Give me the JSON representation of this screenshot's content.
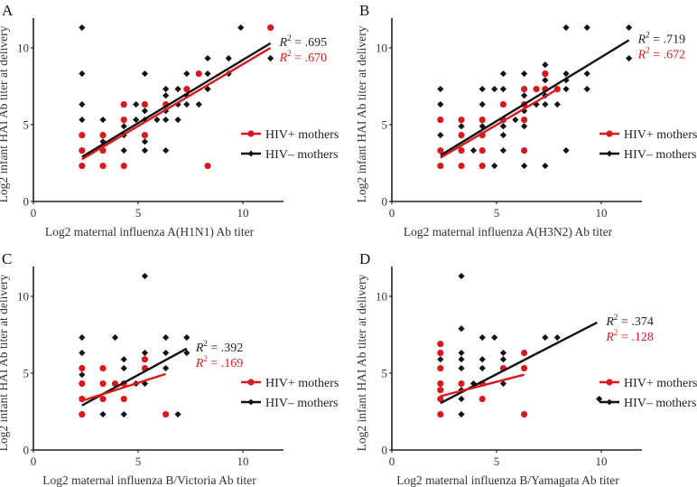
{
  "colors": {
    "hiv_pos": "#d7191c",
    "hiv_neg": "#111111",
    "axis": "#222222"
  },
  "chart_data": [
    {
      "type": "scatter",
      "panel": "A",
      "xlabel": "Log2 maternal influenza A(H1N1) Ab titer",
      "ylabel": "Log2 infant HAI Ab titer at delivery",
      "xlim": [
        0,
        12
      ],
      "ylim": [
        0,
        12
      ],
      "xticks": [
        "0",
        "5",
        "10"
      ],
      "yticks": [
        "0",
        "5",
        "10"
      ],
      "legend": [
        "HIV+ mothers",
        "HIV– mothers"
      ],
      "legend_position": "right",
      "series": [
        {
          "name": "HIV+ mothers",
          "r2_label": "R² = .670",
          "fit": {
            "x": [
              2.32,
              11.32
            ],
            "y": [
              2.75,
              10.0
            ]
          },
          "points": [
            [
              2.32,
              2.32
            ],
            [
              2.32,
              3.32
            ],
            [
              2.32,
              4.32
            ],
            [
              3.32,
              2.32
            ],
            [
              3.32,
              3.32
            ],
            [
              3.32,
              4.32
            ],
            [
              4.32,
              2.32
            ],
            [
              4.32,
              5.32
            ],
            [
              4.32,
              6.32
            ],
            [
              5.32,
              4.32
            ],
            [
              5.32,
              6.32
            ],
            [
              6.32,
              6.32
            ],
            [
              7.32,
              7.32
            ],
            [
              7.9,
              8.32
            ],
            [
              8.32,
              2.32
            ],
            [
              11.32,
              11.32
            ]
          ]
        },
        {
          "name": "HIV– mothers",
          "r2_label": "R² = .695",
          "fit": {
            "x": [
              2.32,
              11.32
            ],
            "y": [
              2.9,
              10.3
            ]
          },
          "points": [
            [
              2.32,
              11.32
            ],
            [
              2.32,
              8.32
            ],
            [
              2.32,
              6.32
            ],
            [
              2.32,
              5.32
            ],
            [
              3.32,
              5.32
            ],
            [
              3.32,
              3.9
            ],
            [
              4.32,
              3.32
            ],
            [
              4.32,
              4.32
            ],
            [
              4.32,
              4.9
            ],
            [
              4.9,
              6.32
            ],
            [
              4.9,
              5.32
            ],
            [
              5.32,
              8.32
            ],
            [
              5.32,
              5.9
            ],
            [
              5.32,
              5.32
            ],
            [
              5.32,
              3.9
            ],
            [
              5.32,
              3.32
            ],
            [
              5.9,
              5.32
            ],
            [
              6.32,
              7.32
            ],
            [
              6.32,
              6.9
            ],
            [
              6.32,
              5.9
            ],
            [
              6.32,
              5.32
            ],
            [
              6.32,
              3.32
            ],
            [
              6.9,
              7.32
            ],
            [
              6.9,
              6.32
            ],
            [
              6.9,
              5.32
            ],
            [
              7.32,
              8.32
            ],
            [
              7.32,
              6.9
            ],
            [
              7.32,
              6.32
            ],
            [
              7.9,
              6.32
            ],
            [
              8.32,
              9.32
            ],
            [
              8.32,
              8.32
            ],
            [
              8.32,
              7.32
            ],
            [
              9.32,
              9.32
            ],
            [
              9.32,
              8.32
            ],
            [
              9.9,
              11.32
            ],
            [
              11.32,
              9.32
            ]
          ]
        }
      ]
    },
    {
      "type": "scatter",
      "panel": "B",
      "xlabel": "Log2 maternal influenza A(H3N2) Ab titer",
      "ylabel": "Log2 infant HAI Ab titer at delivery",
      "xlim": [
        0,
        12
      ],
      "ylim": [
        0,
        12
      ],
      "xticks": [
        "0",
        "5",
        "10"
      ],
      "yticks": [
        "0",
        "5",
        "10"
      ],
      "legend": [
        "HIV+ mothers",
        "HIV– mothers"
      ],
      "legend_position": "right",
      "series": [
        {
          "name": "HIV+ mothers",
          "r2_label": "R² = .672",
          "fit": {
            "x": [
              2.32,
              7.9
            ],
            "y": [
              2.85,
              7.3
            ]
          },
          "points": [
            [
              2.32,
              2.32
            ],
            [
              2.32,
              3.32
            ],
            [
              2.32,
              5.32
            ],
            [
              3.32,
              2.32
            ],
            [
              3.32,
              3.32
            ],
            [
              3.32,
              4.32
            ],
            [
              3.32,
              5.32
            ],
            [
              4.32,
              2.32
            ],
            [
              4.32,
              3.32
            ],
            [
              4.32,
              4.32
            ],
            [
              4.32,
              5.32
            ],
            [
              5.32,
              5.32
            ],
            [
              5.32,
              6.32
            ],
            [
              6.32,
              3.32
            ],
            [
              6.32,
              5.32
            ],
            [
              6.32,
              6.32
            ],
            [
              6.32,
              7.32
            ],
            [
              6.9,
              7.32
            ],
            [
              7.32,
              7.32
            ],
            [
              7.32,
              8.32
            ],
            [
              7.9,
              7.32
            ]
          ]
        },
        {
          "name": "HIV– mothers",
          "r2_label": "R² = .719",
          "fit": {
            "x": [
              2.32,
              11.32
            ],
            "y": [
              3.0,
              10.5
            ]
          },
          "points": [
            [
              2.32,
              7.32
            ],
            [
              2.32,
              6.32
            ],
            [
              2.32,
              4.32
            ],
            [
              3.32,
              4.9
            ],
            [
              3.9,
              3.32
            ],
            [
              4.32,
              7.32
            ],
            [
              4.32,
              6.32
            ],
            [
              4.32,
              4.9
            ],
            [
              4.9,
              2.32
            ],
            [
              4.9,
              7.32
            ],
            [
              5.32,
              8.32
            ],
            [
              5.32,
              7.32
            ],
            [
              5.32,
              4.9
            ],
            [
              5.32,
              4.32
            ],
            [
              5.32,
              3.32
            ],
            [
              5.9,
              5.32
            ],
            [
              6.32,
              8.32
            ],
            [
              6.32,
              6.9
            ],
            [
              6.32,
              5.9
            ],
            [
              6.32,
              4.9
            ],
            [
              6.32,
              2.32
            ],
            [
              6.9,
              6.32
            ],
            [
              7.32,
              8.9
            ],
            [
              7.32,
              7.9
            ],
            [
              7.32,
              6.9
            ],
            [
              7.32,
              6.32
            ],
            [
              7.32,
              2.32
            ],
            [
              7.9,
              7.32
            ],
            [
              7.9,
              6.32
            ],
            [
              8.32,
              8.32
            ],
            [
              8.32,
              7.9
            ],
            [
              8.32,
              7.32
            ],
            [
              8.32,
              3.32
            ],
            [
              9.32,
              7.32
            ],
            [
              9.32,
              8.32
            ],
            [
              9.32,
              11.32
            ],
            [
              8.32,
              11.32
            ],
            [
              11.32,
              11.32
            ],
            [
              11.32,
              9.32
            ]
          ]
        }
      ]
    },
    {
      "type": "scatter",
      "panel": "C",
      "xlabel": "Log2 maternal influenza B/Victoria Ab titer",
      "ylabel": "Log2 infant HAI Ab titer at delivery",
      "xlim": [
        0,
        12
      ],
      "ylim": [
        0,
        12
      ],
      "xticks": [
        "0",
        "5",
        "10"
      ],
      "yticks": [
        "0",
        "5",
        "10"
      ],
      "legend": [
        "HIV+ mothers",
        "HIV– mothers"
      ],
      "legend_position": "right",
      "series": [
        {
          "name": "HIV+ mothers",
          "r2_label": "R² = .169",
          "fit": {
            "x": [
              2.32,
              6.32
            ],
            "y": [
              3.2,
              4.95
            ]
          },
          "points": [
            [
              2.32,
              2.32
            ],
            [
              2.32,
              3.32
            ],
            [
              2.32,
              4.32
            ],
            [
              2.32,
              5.32
            ],
            [
              3.32,
              3.32
            ],
            [
              3.32,
              4.32
            ],
            [
              3.32,
              5.32
            ],
            [
              3.9,
              4.32
            ],
            [
              4.32,
              3.32
            ],
            [
              4.32,
              4.32
            ],
            [
              5.32,
              5.32
            ],
            [
              5.32,
              5.9
            ],
            [
              6.32,
              2.32
            ]
          ]
        },
        {
          "name": "HIV– mothers",
          "r2_label": "R² = .392",
          "fit": {
            "x": [
              2.32,
              7.32
            ],
            "y": [
              2.9,
              6.6
            ]
          },
          "points": [
            [
              2.32,
              7.32
            ],
            [
              2.32,
              6.32
            ],
            [
              2.32,
              4.9
            ],
            [
              3.32,
              2.32
            ],
            [
              3.9,
              7.32
            ],
            [
              4.32,
              5.9
            ],
            [
              4.32,
              5.32
            ],
            [
              4.32,
              2.32
            ],
            [
              4.9,
              4.32
            ],
            [
              5.32,
              11.32
            ],
            [
              5.32,
              6.32
            ],
            [
              5.32,
              4.32
            ],
            [
              6.32,
              7.32
            ],
            [
              6.32,
              6.32
            ],
            [
              6.32,
              5.32
            ],
            [
              6.9,
              2.32
            ],
            [
              7.32,
              7.32
            ],
            [
              7.32,
              6.32
            ]
          ]
        }
      ]
    },
    {
      "type": "scatter",
      "panel": "D",
      "xlabel": "Log2 maternal influenza B/Yamagata Ab titer",
      "ylabel": "Log2 infant HAI Ab titer at delivery",
      "xlim": [
        0,
        12
      ],
      "ylim": [
        0,
        12
      ],
      "xticks": [
        "0",
        "5",
        "10"
      ],
      "yticks": [
        "0",
        "5",
        "10"
      ],
      "legend": [
        "HIV+ mothers",
        "HIV– mothers"
      ],
      "legend_position": "right",
      "series": [
        {
          "name": "HIV+ mothers",
          "r2_label": "R² = .128",
          "fit": {
            "x": [
              2.32,
              6.32
            ],
            "y": [
              3.5,
              4.9
            ]
          },
          "points": [
            [
              2.32,
              2.32
            ],
            [
              2.32,
              3.32
            ],
            [
              2.32,
              3.9
            ],
            [
              2.32,
              4.32
            ],
            [
              2.32,
              5.32
            ],
            [
              2.32,
              6.32
            ],
            [
              2.32,
              6.9
            ],
            [
              3.32,
              4.32
            ],
            [
              4.32,
              3.32
            ],
            [
              4.32,
              4.32
            ],
            [
              5.32,
              5.32
            ],
            [
              6.32,
              2.32
            ],
            [
              6.32,
              5.32
            ],
            [
              6.32,
              6.32
            ]
          ]
        },
        {
          "name": "HIV– mothers",
          "r2_label": "R² = .374",
          "fit": {
            "x": [
              2.32,
              9.8
            ],
            "y": [
              3.05,
              8.3
            ]
          },
          "points": [
            [
              2.32,
              5.9
            ],
            [
              3.32,
              11.32
            ],
            [
              3.32,
              7.9
            ],
            [
              3.32,
              6.32
            ],
            [
              3.32,
              5.9
            ],
            [
              3.32,
              5.32
            ],
            [
              3.32,
              3.9
            ],
            [
              3.32,
              3.32
            ],
            [
              3.32,
              2.32
            ],
            [
              3.9,
              4.32
            ],
            [
              4.32,
              7.32
            ],
            [
              4.32,
              5.9
            ],
            [
              4.32,
              5.32
            ],
            [
              4.9,
              7.32
            ],
            [
              5.32,
              6.32
            ],
            [
              5.32,
              5.9
            ],
            [
              5.32,
              4.32
            ],
            [
              7.32,
              7.32
            ],
            [
              7.9,
              7.32
            ],
            [
              9.9,
              3.32
            ]
          ]
        }
      ]
    }
  ]
}
